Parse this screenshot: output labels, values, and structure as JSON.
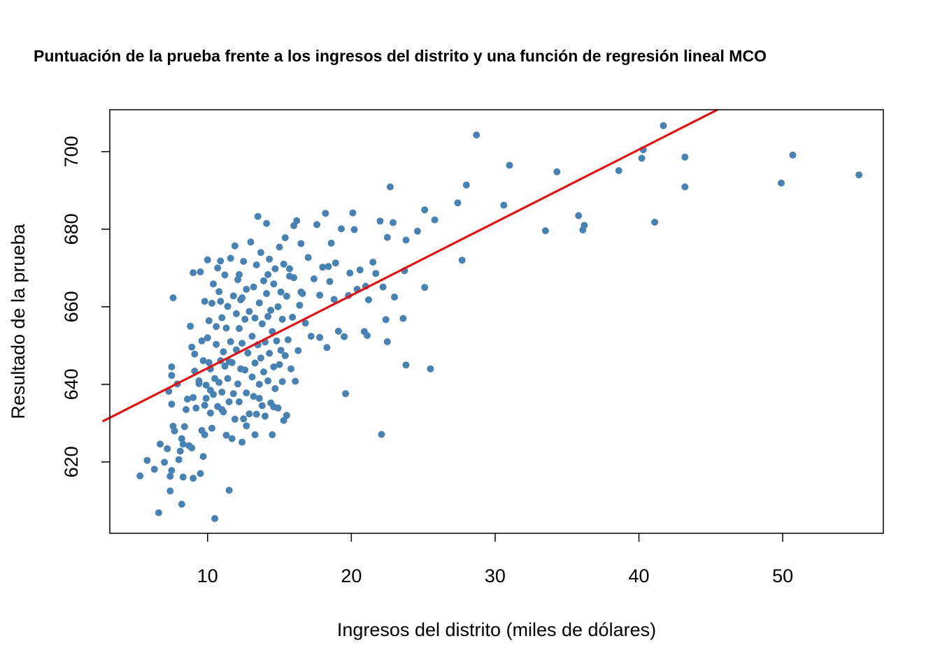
{
  "chart_data": {
    "type": "scatter",
    "title": "Puntuación de la prueba frente a los ingresos del distrito y una función de regresión lineal MCO",
    "xlabel": "Ingresos del distrito (miles de dólares)",
    "ylabel": "Resultado de la prueba",
    "xlim": [
      3.2,
      57.0
    ],
    "ylim": [
      601.6,
      710.8
    ],
    "xticks": [
      10,
      20,
      30,
      40,
      50
    ],
    "yticks": [
      620,
      640,
      660,
      680,
      700
    ],
    "grid": false,
    "point_color": "#4682B4",
    "regression_line": {
      "intercept": 625.38,
      "slope": 1.879,
      "color": "#FF0000"
    },
    "points": [
      [
        5.3,
        616.4
      ],
      [
        5.8,
        620.4
      ],
      [
        6.3,
        618.1
      ],
      [
        6.6,
        606.9
      ],
      [
        6.7,
        624.6
      ],
      [
        7.0,
        619.9
      ],
      [
        7.2,
        623.4
      ],
      [
        7.3,
        638.2
      ],
      [
        7.4,
        612.5
      ],
      [
        7.4,
        616.3
      ],
      [
        7.5,
        617.8
      ],
      [
        7.6,
        629.2
      ],
      [
        7.5,
        634.9
      ],
      [
        7.5,
        644.5
      ],
      [
        7.5,
        642.3
      ],
      [
        7.6,
        662.3
      ],
      [
        7.7,
        628.0
      ],
      [
        7.9,
        640.1
      ],
      [
        8.0,
        620.6
      ],
      [
        8.1,
        622.8
      ],
      [
        8.2,
        626.0
      ],
      [
        8.2,
        609.1
      ],
      [
        8.3,
        624.6
      ],
      [
        8.3,
        616.1
      ],
      [
        8.4,
        629.1
      ],
      [
        8.5,
        633.5
      ],
      [
        8.6,
        636.2
      ],
      [
        8.7,
        624.2
      ],
      [
        8.8,
        655.0
      ],
      [
        8.9,
        649.6
      ],
      [
        8.9,
        623.6
      ],
      [
        9.0,
        615.8
      ],
      [
        9.0,
        636.6
      ],
      [
        9.1,
        643.4
      ],
      [
        9.1,
        647.8
      ],
      [
        9.0,
        668.8
      ],
      [
        9.2,
        633.9
      ],
      [
        9.4,
        640.9
      ],
      [
        9.5,
        617.0
      ],
      [
        9.5,
        669.0
      ],
      [
        9.6,
        628.1
      ],
      [
        9.6,
        651.2
      ],
      [
        9.7,
        621.4
      ],
      [
        9.7,
        646.1
      ],
      [
        9.8,
        627.0
      ],
      [
        9.8,
        661.4
      ],
      [
        9.9,
        636.4
      ],
      [
        9.9,
        639.8
      ],
      [
        10.0,
        672.1
      ],
      [
        10.0,
        652.0
      ],
      [
        10.1,
        645.6
      ],
      [
        10.1,
        656.4
      ],
      [
        10.2,
        632.6
      ],
      [
        10.2,
        644.0
      ],
      [
        10.3,
        628.7
      ],
      [
        10.3,
        660.9
      ],
      [
        10.4,
        637.4
      ],
      [
        10.4,
        665.9
      ],
      [
        10.5,
        605.4
      ],
      [
        10.5,
        641.5
      ],
      [
        10.6,
        650.3
      ],
      [
        10.6,
        654.9
      ],
      [
        10.7,
        670.0
      ],
      [
        10.7,
        634.3
      ],
      [
        10.8,
        640.5
      ],
      [
        10.8,
        663.9
      ],
      [
        10.9,
        646.1
      ],
      [
        10.9,
        671.8
      ],
      [
        11.0,
        638.0
      ],
      [
        11.0,
        657.2
      ],
      [
        11.1,
        632.9
      ],
      [
        11.1,
        648.4
      ],
      [
        11.2,
        644.7
      ],
      [
        11.2,
        668.2
      ],
      [
        11.3,
        626.9
      ],
      [
        11.3,
        654.5
      ],
      [
        11.4,
        641.5
      ],
      [
        11.4,
        660.1
      ],
      [
        11.5,
        612.7
      ],
      [
        11.5,
        635.5
      ],
      [
        11.6,
        651.0
      ],
      [
        11.6,
        672.5
      ],
      [
        11.7,
        626.0
      ],
      [
        11.7,
        645.6
      ],
      [
        11.8,
        637.6
      ],
      [
        11.8,
        662.8
      ],
      [
        11.9,
        631.0
      ],
      [
        11.9,
        675.7
      ],
      [
        12.0,
        648.9
      ],
      [
        12.0,
        658.2
      ],
      [
        12.1,
        640.1
      ],
      [
        12.1,
        667.0
      ],
      [
        12.2,
        635.5
      ],
      [
        12.2,
        654.4
      ],
      [
        12.3,
        644.0
      ],
      [
        12.3,
        661.8
      ],
      [
        12.4,
        625.1
      ],
      [
        12.4,
        650.6
      ],
      [
        12.5,
        631.1
      ],
      [
        12.5,
        671.7
      ],
      [
        12.6,
        643.7
      ],
      [
        12.6,
        656.8
      ],
      [
        12.7,
        637.8
      ],
      [
        12.7,
        664.5
      ],
      [
        12.8,
        648.1
      ],
      [
        12.9,
        632.4
      ],
      [
        12.9,
        658.8
      ],
      [
        13.0,
        676.7
      ],
      [
        13.1,
        641.9
      ],
      [
        13.1,
        652.4
      ],
      [
        13.2,
        636.9
      ],
      [
        13.2,
        665.1
      ],
      [
        13.3,
        645.5
      ],
      [
        13.3,
        657.1
      ],
      [
        13.4,
        632.3
      ],
      [
        13.4,
        670.8
      ],
      [
        13.5,
        650.2
      ],
      [
        13.5,
        683.3
      ],
      [
        13.6,
        640.0
      ],
      [
        13.6,
        661.0
      ],
      [
        13.7,
        646.8
      ],
      [
        13.7,
        674.0
      ],
      [
        13.8,
        634.5
      ],
      [
        13.8,
        655.6
      ],
      [
        13.9,
        643.2
      ],
      [
        13.9,
        666.7
      ],
      [
        14.0,
        631.8
      ],
      [
        14.0,
        650.9
      ],
      [
        14.1,
        681.5
      ],
      [
        14.1,
        663.4
      ],
      [
        14.2,
        640.9
      ],
      [
        14.2,
        657.5
      ],
      [
        14.3,
        648.0
      ],
      [
        14.3,
        672.3
      ],
      [
        14.4,
        635.2
      ],
      [
        14.4,
        659.1
      ],
      [
        14.5,
        627.0
      ],
      [
        14.5,
        653.6
      ],
      [
        14.6,
        644.5
      ],
      [
        14.6,
        665.9
      ],
      [
        14.7,
        638.9
      ],
      [
        14.7,
        669.8
      ],
      [
        14.8,
        651.2
      ],
      [
        14.9,
        633.9
      ],
      [
        14.9,
        660.0
      ],
      [
        15.0,
        645.1
      ],
      [
        15.0,
        675.4
      ],
      [
        15.1,
        648.8
      ],
      [
        15.1,
        663.8
      ],
      [
        15.2,
        640.7
      ],
      [
        15.2,
        656.8
      ],
      [
        15.3,
        630.7
      ],
      [
        15.3,
        671.0
      ],
      [
        15.4,
        647.4
      ],
      [
        15.4,
        677.8
      ],
      [
        15.5,
        632.0
      ],
      [
        15.5,
        662.7
      ],
      [
        15.6,
        651.5
      ],
      [
        15.7,
        669.8
      ],
      [
        15.8,
        644.0
      ],
      [
        15.9,
        657.3
      ],
      [
        16.0,
        667.5
      ],
      [
        16.1,
        640.8
      ],
      [
        16.2,
        682.2
      ],
      [
        16.3,
        648.7
      ],
      [
        16.4,
        660.4
      ],
      [
        16.5,
        676.3
      ],
      [
        16.6,
        663.4
      ],
      [
        16.8,
        655.8
      ],
      [
        17.0,
        672.7
      ],
      [
        17.2,
        652.4
      ],
      [
        17.4,
        667.2
      ],
      [
        17.6,
        681.2
      ],
      [
        17.8,
        663.0
      ],
      [
        18.0,
        670.2
      ],
      [
        18.2,
        684.1
      ],
      [
        18.3,
        649.5
      ],
      [
        18.5,
        666.5
      ],
      [
        18.6,
        676.4
      ],
      [
        18.8,
        661.9
      ],
      [
        18.9,
        671.3
      ],
      [
        19.1,
        653.7
      ],
      [
        19.3,
        680.1
      ],
      [
        19.5,
        652.3
      ],
      [
        19.8,
        662.9
      ],
      [
        19.9,
        668.7
      ],
      [
        20.1,
        684.2
      ],
      [
        20.2,
        679.9
      ],
      [
        20.4,
        664.5
      ],
      [
        20.6,
        669.5
      ],
      [
        20.9,
        653.6
      ],
      [
        21.0,
        665.3
      ],
      [
        21.2,
        661.8
      ],
      [
        21.5,
        671.5
      ],
      [
        21.7,
        668.6
      ],
      [
        22.0,
        682.1
      ],
      [
        22.1,
        627.1
      ],
      [
        22.2,
        665.1
      ],
      [
        22.4,
        656.7
      ],
      [
        22.5,
        677.9
      ],
      [
        22.5,
        651.0
      ],
      [
        22.7,
        690.9
      ],
      [
        22.9,
        681.7
      ],
      [
        23.6,
        657.0
      ],
      [
        23.7,
        669.3
      ],
      [
        23.8,
        645.0
      ],
      [
        23.8,
        677.2
      ],
      [
        24.6,
        679.5
      ],
      [
        25.1,
        685.0
      ],
      [
        25.1,
        665.0
      ],
      [
        25.5,
        644.0
      ],
      [
        25.8,
        682.4
      ],
      [
        27.4,
        686.8
      ],
      [
        27.7,
        672.0
      ],
      [
        28.0,
        691.4
      ],
      [
        28.7,
        704.3
      ],
      [
        30.6,
        686.2
      ],
      [
        31.0,
        696.5
      ],
      [
        33.5,
        679.6
      ],
      [
        34.3,
        694.8
      ],
      [
        35.8,
        683.5
      ],
      [
        36.1,
        679.8
      ],
      [
        36.2,
        681.0
      ],
      [
        38.6,
        695.1
      ],
      [
        40.2,
        698.3
      ],
      [
        40.3,
        700.5
      ],
      [
        41.1,
        681.8
      ],
      [
        41.7,
        706.7
      ],
      [
        43.2,
        698.6
      ],
      [
        43.2,
        690.9
      ],
      [
        49.9,
        691.9
      ],
      [
        50.7,
        699.1
      ],
      [
        55.3,
        694.0
      ],
      [
        10.2,
        638.5
      ],
      [
        12.7,
        629.3
      ],
      [
        14.6,
        634.2
      ],
      [
        11.0,
        633.5
      ],
      [
        13.6,
        636.4
      ],
      [
        9.8,
        634.6
      ],
      [
        15.7,
        667.9
      ],
      [
        12.2,
        668.3
      ],
      [
        16.5,
        663.8
      ],
      [
        17.8,
        652.1
      ],
      [
        18.4,
        670.4
      ],
      [
        11.5,
        645.9
      ],
      [
        9.4,
        640.2
      ],
      [
        13.3,
        627.0
      ],
      [
        14.2,
        668.3
      ],
      [
        16.0,
        680.9
      ],
      [
        19.6,
        637.6
      ],
      [
        21.1,
        652.6
      ],
      [
        23.0,
        662.5
      ],
      [
        10.9,
        661.4
      ],
      [
        12.4,
        662.3
      ]
    ]
  }
}
